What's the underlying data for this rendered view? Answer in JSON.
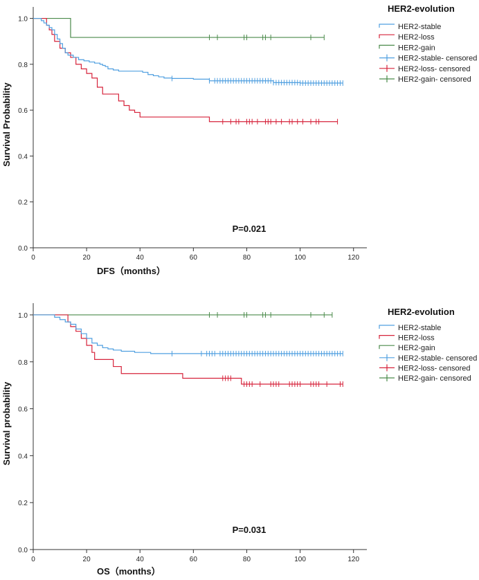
{
  "chart_data": [
    {
      "type": "line",
      "subtype": "kaplan-meier",
      "title": "",
      "xlabel": "DFS（months）",
      "ylabel": "Survival Probability",
      "xlim": [
        0,
        125
      ],
      "ylim": [
        0,
        1.05
      ],
      "xticks": [
        0,
        20,
        40,
        60,
        80,
        100,
        120
      ],
      "yticks": [
        "0.0",
        "0.2",
        "0.4",
        "0.6",
        "0.8",
        "1.0"
      ],
      "annotation": "P=0.021",
      "legend": {
        "title": "HER2-evolution",
        "position": "top-right",
        "entries": [
          {
            "label": "HER2-stable",
            "color": "#4f9fe0",
            "marker": "step"
          },
          {
            "label": "HER2-loss",
            "color": "#d6223a",
            "marker": "step"
          },
          {
            "label": "HER2-gain",
            "color": "#4a8a4a",
            "marker": "step"
          },
          {
            "label": "HER2-stable- censored",
            "color": "#4f9fe0",
            "marker": "cross"
          },
          {
            "label": "HER2-loss- censored",
            "color": "#d6223a",
            "marker": "cross"
          },
          {
            "label": "HER2-gain- censored",
            "color": "#4a8a4a",
            "marker": "cross"
          }
        ]
      },
      "series": [
        {
          "name": "HER2-stable",
          "color": "#4f9fe0",
          "steps": [
            [
              0,
              1.0
            ],
            [
              3,
              0.99
            ],
            [
              4,
              0.98
            ],
            [
              5,
              0.97
            ],
            [
              6,
              0.96
            ],
            [
              7,
              0.95
            ],
            [
              8,
              0.93
            ],
            [
              9,
              0.91
            ],
            [
              10,
              0.89
            ],
            [
              11,
              0.87
            ],
            [
              12,
              0.85
            ],
            [
              13,
              0.84
            ],
            [
              15,
              0.83
            ],
            [
              17,
              0.82
            ],
            [
              19,
              0.815
            ],
            [
              21,
              0.81
            ],
            [
              23,
              0.805
            ],
            [
              25,
              0.8
            ],
            [
              26,
              0.795
            ],
            [
              27,
              0.79
            ],
            [
              28,
              0.78
            ],
            [
              30,
              0.775
            ],
            [
              32,
              0.77
            ],
            [
              41,
              0.765
            ],
            [
              43,
              0.755
            ],
            [
              45,
              0.75
            ],
            [
              47,
              0.745
            ],
            [
              49,
              0.74
            ],
            [
              52,
              0.738
            ],
            [
              60,
              0.735
            ],
            [
              66,
              0.728
            ],
            [
              90,
              0.72
            ],
            [
              100,
              0.718
            ]
          ],
          "end": 116,
          "censored": [
            52,
            66,
            68,
            69,
            70,
            71,
            72,
            73,
            74,
            75,
            76,
            77,
            78,
            79,
            80,
            81,
            82,
            83,
            84,
            85,
            86,
            87,
            88,
            89,
            90,
            91,
            92,
            93,
            94,
            95,
            96,
            97,
            98,
            99,
            100,
            101,
            102,
            103,
            104,
            105,
            106,
            107,
            108,
            109,
            110,
            111,
            112,
            113,
            114,
            115,
            116
          ]
        },
        {
          "name": "HER2-loss",
          "color": "#d6223a",
          "steps": [
            [
              0,
              1.0
            ],
            [
              5,
              0.97
            ],
            [
              6,
              0.95
            ],
            [
              7,
              0.93
            ],
            [
              8,
              0.9
            ],
            [
              10,
              0.87
            ],
            [
              12,
              0.85
            ],
            [
              14,
              0.83
            ],
            [
              16,
              0.8
            ],
            [
              18,
              0.78
            ],
            [
              20,
              0.76
            ],
            [
              22,
              0.74
            ],
            [
              24,
              0.7
            ],
            [
              26,
              0.67
            ],
            [
              32,
              0.64
            ],
            [
              34,
              0.62
            ],
            [
              36,
              0.6
            ],
            [
              38,
              0.59
            ],
            [
              40,
              0.57
            ],
            [
              66,
              0.55
            ]
          ],
          "end": 114,
          "censored": [
            71,
            74,
            76,
            77,
            80,
            81,
            82,
            84,
            87,
            88,
            89,
            91,
            93,
            96,
            97,
            99,
            101,
            104,
            106,
            107,
            114
          ]
        },
        {
          "name": "HER2-gain",
          "color": "#4a8a4a",
          "steps": [
            [
              0,
              1.0
            ],
            [
              14,
              0.917
            ]
          ],
          "end": 109,
          "censored": [
            66,
            69,
            79,
            80,
            86,
            87,
            89,
            104,
            109
          ]
        }
      ]
    },
    {
      "type": "line",
      "subtype": "kaplan-meier",
      "title": "",
      "xlabel": "OS（months）",
      "ylabel": "Survival probability",
      "xlim": [
        0,
        125
      ],
      "ylim": [
        0,
        1.05
      ],
      "xticks": [
        0,
        20,
        40,
        60,
        80,
        100,
        120
      ],
      "yticks": [
        "0.0",
        "0.2",
        "0.4",
        "0.6",
        "0.8",
        "1.0"
      ],
      "annotation": "P=0.031",
      "legend": {
        "title": "HER2-evolution",
        "position": "top-right",
        "entries": [
          {
            "label": "HER2-stable",
            "color": "#4f9fe0",
            "marker": "step"
          },
          {
            "label": "HER2-loss",
            "color": "#d6223a",
            "marker": "step"
          },
          {
            "label": "HER2-gain",
            "color": "#4a8a4a",
            "marker": "step"
          },
          {
            "label": "HER2-stable- censored",
            "color": "#4f9fe0",
            "marker": "cross"
          },
          {
            "label": "HER2-loss- censored",
            "color": "#d6223a",
            "marker": "cross"
          },
          {
            "label": "HER2-gain- censored",
            "color": "#4a8a4a",
            "marker": "cross"
          }
        ]
      },
      "series": [
        {
          "name": "HER2-stable",
          "color": "#4f9fe0",
          "steps": [
            [
              0,
              1.0
            ],
            [
              8,
              0.99
            ],
            [
              10,
              0.98
            ],
            [
              12,
              0.97
            ],
            [
              14,
              0.96
            ],
            [
              16,
              0.94
            ],
            [
              18,
              0.92
            ],
            [
              20,
              0.9
            ],
            [
              22,
              0.88
            ],
            [
              24,
              0.87
            ],
            [
              26,
              0.86
            ],
            [
              28,
              0.855
            ],
            [
              30,
              0.85
            ],
            [
              33,
              0.845
            ],
            [
              38,
              0.84
            ],
            [
              44,
              0.835
            ]
          ],
          "end": 116,
          "censored": [
            52,
            63,
            65,
            66,
            67,
            68,
            70,
            71,
            72,
            73,
            74,
            75,
            76,
            77,
            78,
            79,
            80,
            81,
            82,
            83,
            84,
            85,
            86,
            87,
            88,
            89,
            90,
            91,
            92,
            93,
            94,
            95,
            96,
            97,
            98,
            99,
            100,
            101,
            102,
            103,
            104,
            105,
            106,
            107,
            108,
            109,
            110,
            111,
            112,
            113,
            114,
            115,
            116
          ]
        },
        {
          "name": "HER2-loss",
          "color": "#d6223a",
          "steps": [
            [
              0,
              1.0
            ],
            [
              13,
              0.97
            ],
            [
              14,
              0.95
            ],
            [
              16,
              0.93
            ],
            [
              18,
              0.9
            ],
            [
              20,
              0.87
            ],
            [
              22,
              0.84
            ],
            [
              23,
              0.81
            ],
            [
              30,
              0.78
            ],
            [
              33,
              0.75
            ],
            [
              56,
              0.73
            ],
            [
              78,
              0.705
            ]
          ],
          "end": 116,
          "censored": [
            71,
            72,
            73,
            74,
            79,
            80,
            81,
            82,
            85,
            89,
            90,
            91,
            92,
            96,
            97,
            98,
            99,
            100,
            104,
            105,
            106,
            107,
            110,
            115,
            116
          ]
        },
        {
          "name": "HER2-gain",
          "color": "#4a8a4a",
          "steps": [
            [
              0,
              1.0
            ]
          ],
          "end": 112,
          "censored": [
            66,
            69,
            79,
            80,
            86,
            87,
            89,
            104,
            109,
            112
          ]
        }
      ]
    }
  ]
}
